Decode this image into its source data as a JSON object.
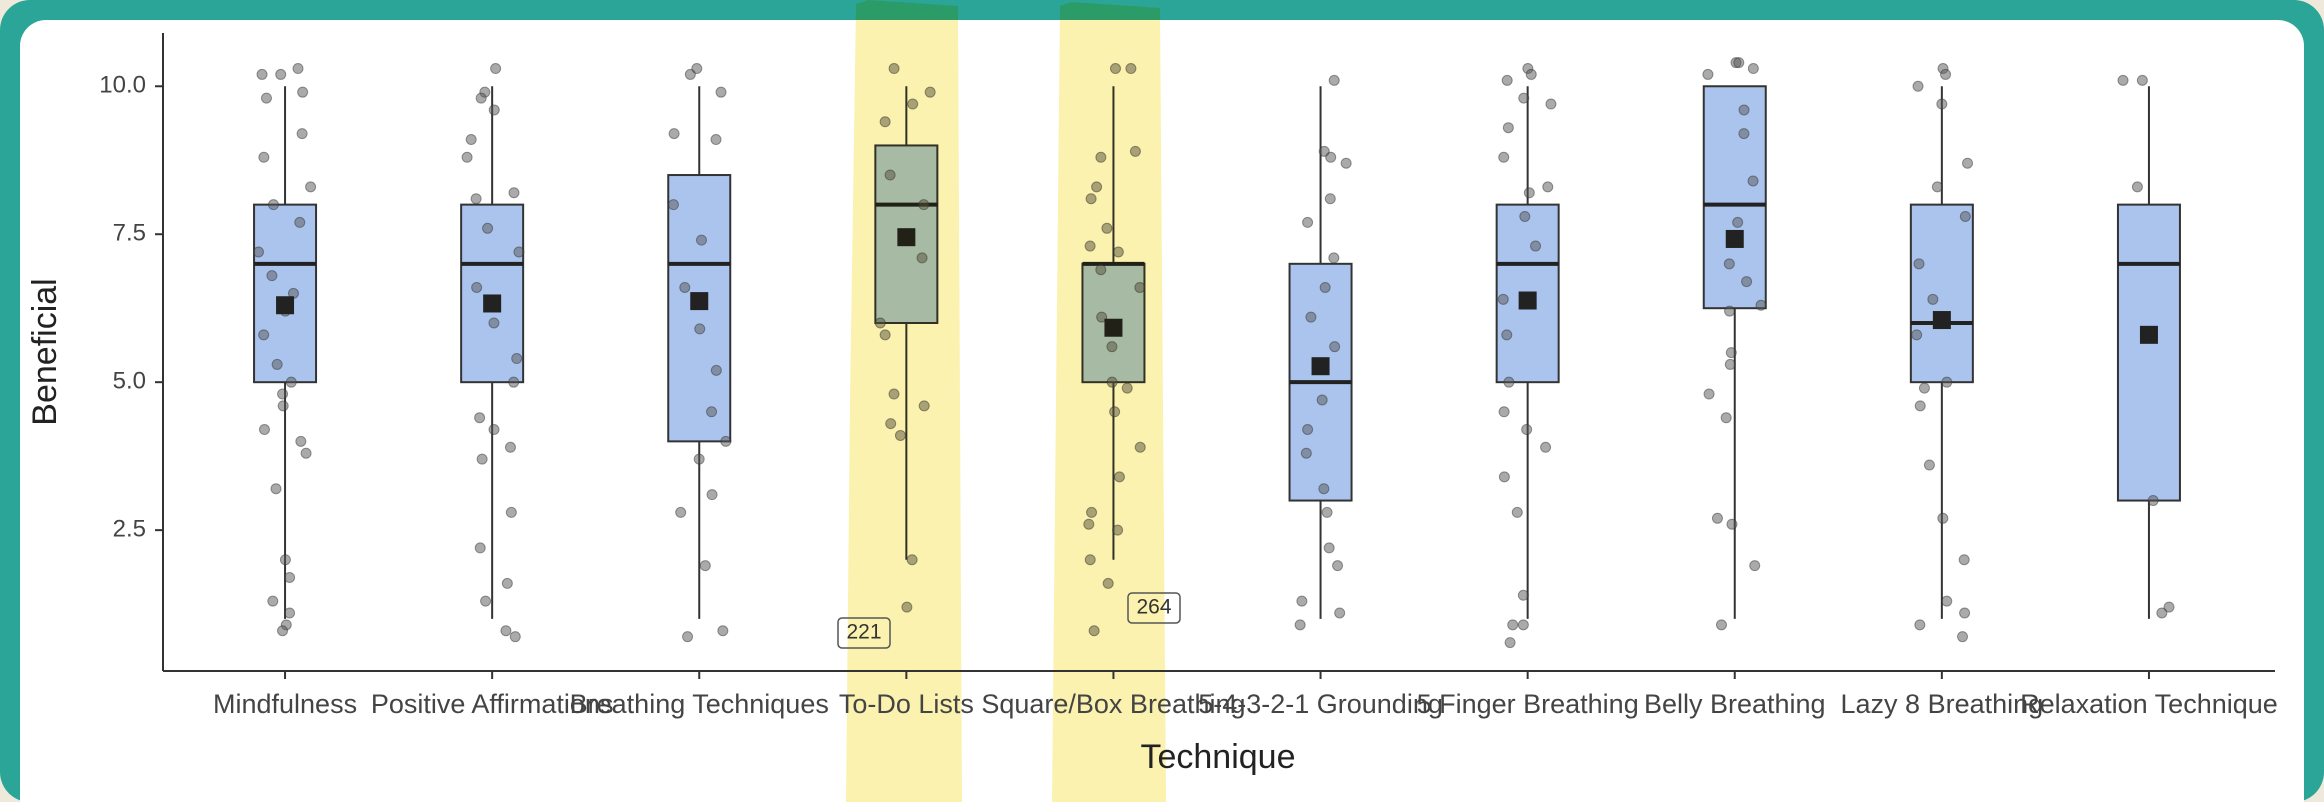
{
  "chart_data": {
    "type": "box",
    "x_label": "Technique",
    "y_label": "Beneficial",
    "categories": [
      "Mindfulness",
      "Positive Affirmations",
      "Breathing Techniques",
      "To-Do Lists",
      "Square/Box Breathing",
      "5-4-3-2-1 Grounding",
      "5 Finger Breathing",
      "Belly Breathing",
      "Lazy 8 Breathing",
      "Relaxation Technique"
    ],
    "whisker_low": [
      1,
      1,
      1,
      2,
      2,
      1,
      1,
      1,
      1,
      1
    ],
    "q1": [
      5,
      5,
      4,
      6,
      5,
      3,
      5,
      6.25,
      5,
      3
    ],
    "median": [
      7,
      7,
      7,
      8,
      7,
      5,
      7,
      8,
      6,
      7
    ],
    "q3": [
      8,
      8,
      8.5,
      9,
      7,
      7,
      8,
      10,
      8,
      8
    ],
    "whisker_high": [
      10,
      10,
      10,
      10,
      10,
      10,
      10,
      10,
      10,
      10
    ],
    "mean": [
      6.3,
      6.33,
      6.37,
      7.45,
      5.92,
      5.27,
      6.38,
      7.42,
      6.05,
      5.8
    ],
    "points": [
      [
        10.3,
        10.2,
        10.2,
        9.9,
        9.8,
        9.2,
        8.8,
        8.3,
        8.0,
        7.7,
        7.2,
        6.8,
        6.5,
        6.2,
        5.8,
        5.3,
        5.0,
        4.8,
        4.6,
        4.2,
        4.0,
        3.8,
        3.2,
        2.0,
        1.7,
        1.3,
        1.1,
        0.9,
        0.8
      ],
      [
        10.3,
        9.9,
        9.8,
        9.6,
        9.1,
        8.8,
        8.2,
        8.1,
        7.6,
        7.2,
        6.6,
        6.0,
        5.4,
        5.0,
        4.4,
        4.2,
        3.9,
        3.7,
        2.8,
        2.2,
        1.6,
        1.3,
        0.8,
        0.7
      ],
      [
        10.3,
        10.2,
        9.9,
        9.2,
        9.1,
        8.0,
        7.4,
        6.6,
        5.9,
        5.2,
        4.5,
        4.0,
        3.7,
        3.1,
        2.8,
        1.9,
        0.8,
        0.7
      ],
      [
        10.3,
        9.9,
        9.7,
        9.4,
        8.5,
        8.0,
        7.1,
        6.0,
        5.8,
        4.8,
        4.6,
        4.3,
        4.1,
        2.0,
        1.2
      ],
      [
        10.3,
        10.3,
        8.9,
        8.8,
        8.3,
        8.1,
        7.6,
        7.3,
        7.2,
        6.9,
        6.6,
        6.1,
        5.6,
        5.0,
        4.9,
        4.5,
        3.9,
        3.4,
        2.8,
        2.6,
        2.5,
        2.0,
        1.6,
        0.8
      ],
      [
        10.1,
        8.9,
        8.8,
        8.7,
        8.1,
        7.7,
        7.1,
        6.6,
        6.1,
        5.6,
        4.7,
        4.2,
        3.8,
        3.2,
        2.8,
        2.2,
        1.9,
        1.3,
        1.1,
        0.9
      ],
      [
        10.3,
        10.2,
        10.1,
        9.8,
        9.7,
        9.3,
        8.8,
        8.3,
        8.2,
        7.8,
        7.3,
        6.4,
        5.8,
        5.0,
        4.5,
        4.2,
        3.9,
        3.4,
        2.8,
        1.4,
        0.9,
        0.9,
        0.6
      ],
      [
        10.4,
        10.4,
        10.3,
        10.2,
        9.6,
        9.2,
        8.4,
        7.7,
        7.0,
        6.7,
        6.3,
        6.2,
        5.5,
        5.3,
        4.8,
        4.4,
        2.7,
        2.6,
        1.9,
        0.9
      ],
      [
        10.3,
        10.2,
        10.0,
        9.7,
        8.7,
        8.3,
        7.8,
        7.0,
        6.4,
        5.8,
        5.0,
        4.9,
        4.6,
        3.6,
        2.7,
        2.0,
        1.3,
        1.1,
        0.9,
        0.7
      ],
      [
        10.1,
        10.1,
        8.3,
        3.0,
        1.2,
        1.1
      ]
    ],
    "box_color": "#aac4ee",
    "mean_color": "#222222",
    "point_color": "#555555",
    "ylim": [
      0.12,
      10.9
    ],
    "yticks": [
      {
        "value": 2.5,
        "label": "2.5"
      },
      {
        "value": 5,
        "label": "5.0"
      },
      {
        "value": 7.5,
        "label": "7.5"
      },
      {
        "value": 10,
        "label": "10.0"
      }
    ],
    "annotations": [
      "221",
      "264"
    ]
  }
}
